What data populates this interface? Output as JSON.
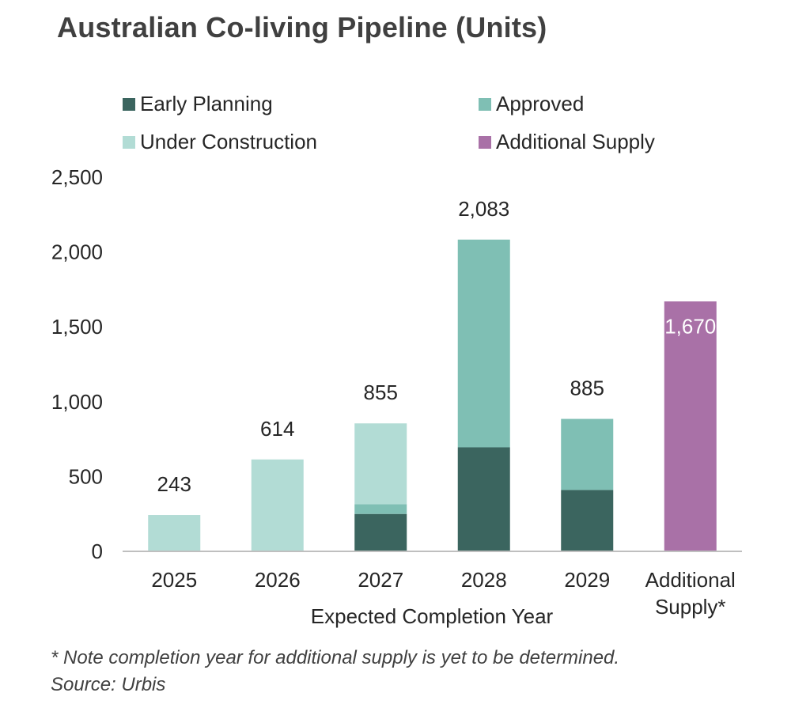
{
  "title": "Australian Co-living Pipeline (Units)",
  "legend": [
    {
      "label": "Early Planning",
      "color": "#3b655f"
    },
    {
      "label": "Approved",
      "color": "#7fbfb4"
    },
    {
      "label": "Under Construction",
      "color": "#b2dcd5"
    },
    {
      "label": "Additional Supply",
      "color": "#a971a7"
    }
  ],
  "notes": {
    "footnote": "* Note completion year for additional supply is yet to be determined.",
    "source": "Source: Urbis"
  },
  "chart_data": {
    "type": "bar",
    "stacked": true,
    "title": "Australian Co-living Pipeline (Units)",
    "xlabel": "Expected Completion Year",
    "ylabel": "",
    "ylim": [
      0,
      2500
    ],
    "yticks": [
      0,
      500,
      1000,
      1500,
      2000,
      2500
    ],
    "yticklabels": [
      "0",
      "500",
      "1,000",
      "1,500",
      "2,000",
      "2,500"
    ],
    "grid": false,
    "legend_position": "top",
    "categories": [
      "2025",
      "2026",
      "2027",
      "2028",
      "2029",
      "Additional Supply*"
    ],
    "series": [
      {
        "name": "Early Planning",
        "color": "#3b655f",
        "values": [
          0,
          0,
          250,
          695,
          410,
          0
        ]
      },
      {
        "name": "Approved",
        "color": "#7fbfb4",
        "values": [
          0,
          0,
          65,
          1388,
          475,
          0
        ]
      },
      {
        "name": "Under Construction",
        "color": "#b2dcd5",
        "values": [
          243,
          614,
          540,
          0,
          0,
          0
        ]
      },
      {
        "name": "Additional Supply",
        "color": "#a971a7",
        "values": [
          0,
          0,
          0,
          0,
          0,
          1670
        ]
      }
    ],
    "totals": [
      243,
      614,
      855,
      2083,
      885,
      1670
    ],
    "total_labels": [
      "243",
      "614",
      "855",
      "2,083",
      "885",
      "1,670"
    ]
  }
}
